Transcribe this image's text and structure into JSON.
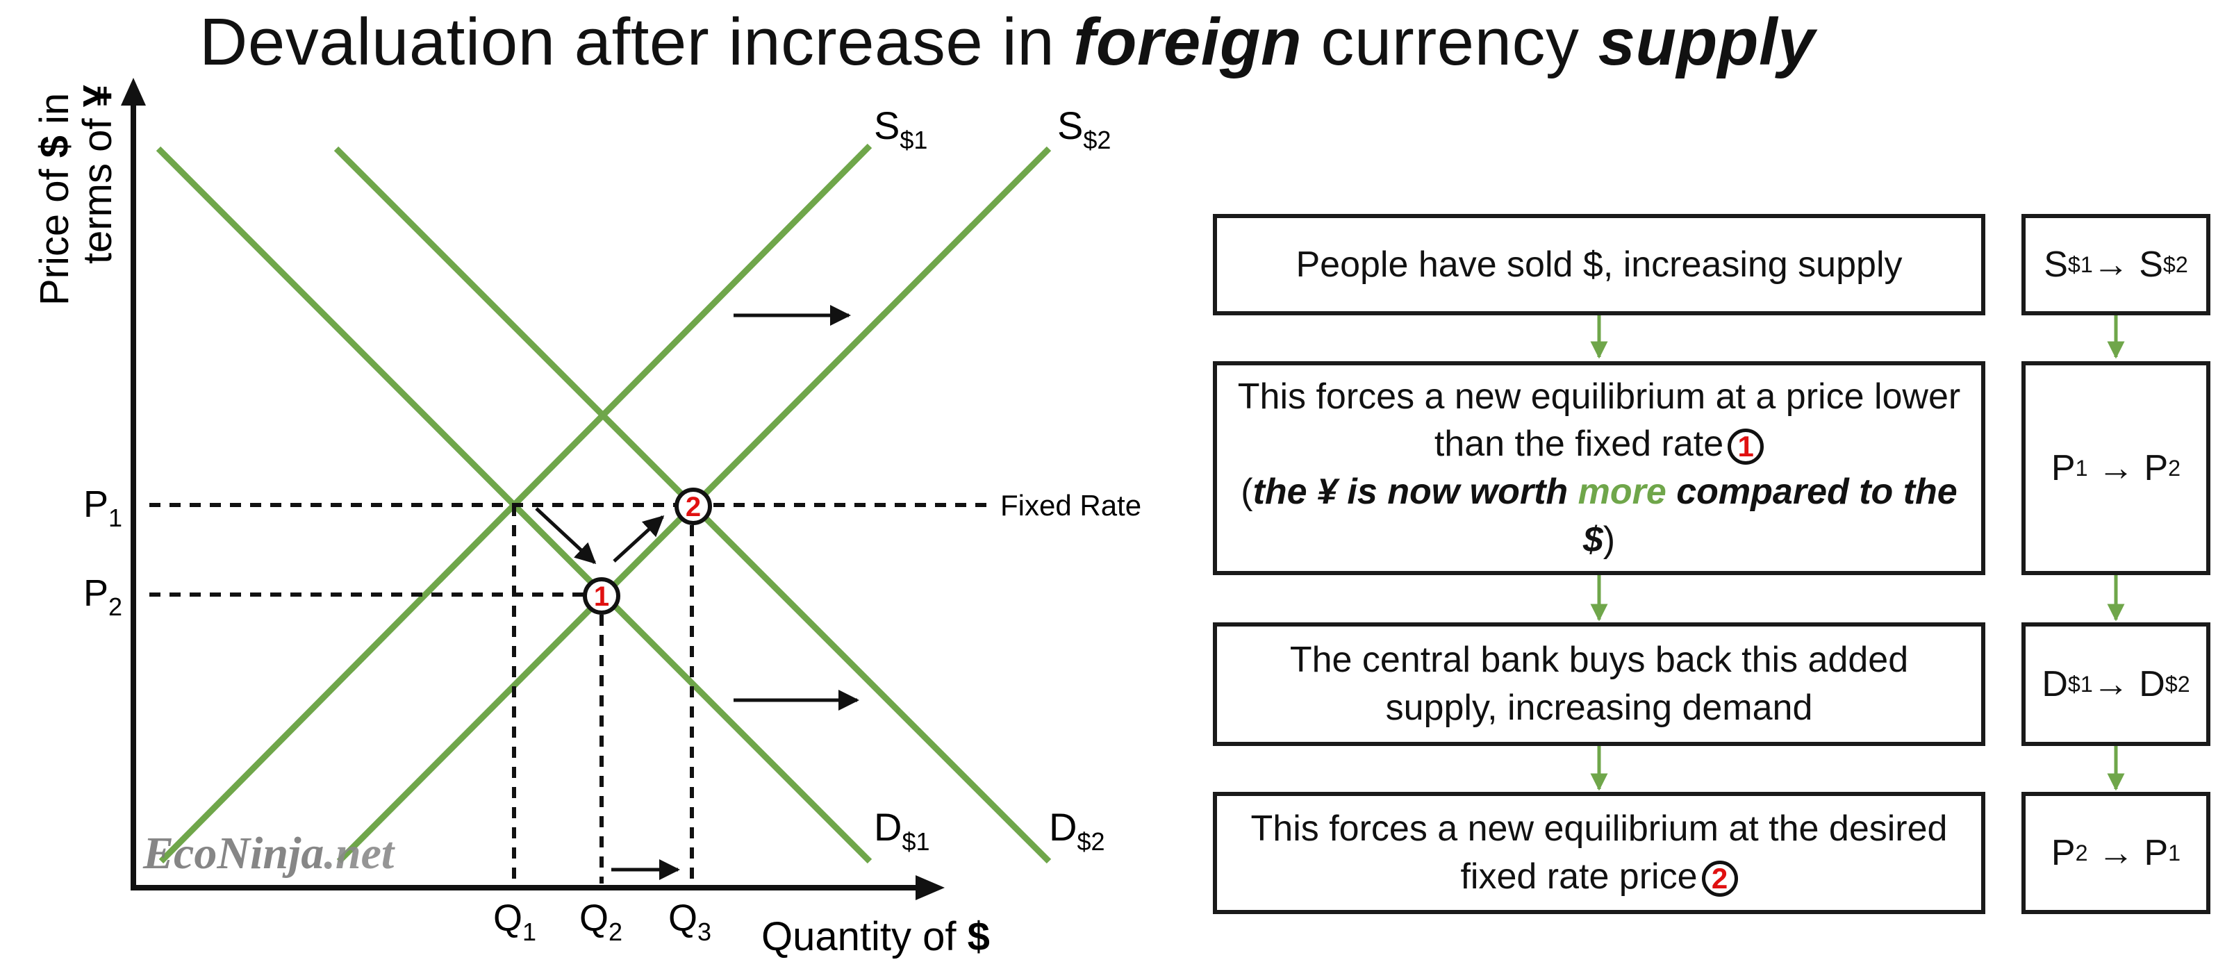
{
  "title": {
    "part1": "Devaluation after increase in ",
    "em1": "foreign",
    "part2": " currency ",
    "em2": "supply"
  },
  "colors": {
    "curve": "#6fa64a",
    "marker": "#e01010",
    "ink": "#111111"
  },
  "chart_data": {
    "type": "diagram",
    "y_axis_label_line1_pre": "Price of ",
    "y_axis_label_line1_bold": "$",
    "y_axis_label_line1_post": " in",
    "y_axis_label_line2_pre": "terms of ",
    "y_axis_label_line2_bold": "¥",
    "x_axis_label_pre": "Quantity of ",
    "x_axis_label_bold": "$",
    "curves": [
      {
        "label": "S",
        "sub": "$1"
      },
      {
        "label": "S",
        "sub": "$2"
      },
      {
        "label": "D",
        "sub": "$1"
      },
      {
        "label": "D",
        "sub": "$2"
      }
    ],
    "price_levels": [
      {
        "label": "P",
        "sub": "1"
      },
      {
        "label": "P",
        "sub": "2"
      }
    ],
    "quantities": [
      {
        "label": "Q",
        "sub": "1"
      },
      {
        "label": "Q",
        "sub": "2"
      },
      {
        "label": "Q",
        "sub": "3"
      }
    ],
    "fixed_rate_label": "Fixed Rate",
    "equilibrium_markers": [
      "1",
      "2"
    ],
    "watermark_part1": "EcoNinja",
    "watermark_part2": ".net"
  },
  "flow": {
    "step1": "People have sold $, increasing supply",
    "step2_line": "This forces a new equilibrium at a price lower than the fixed rate",
    "step2_marker": "1",
    "step2_paren_open": "(",
    "step2_bold1": "the ¥ is now worth ",
    "step2_green": "more",
    "step2_bold2": " compared to the $",
    "step2_paren_close": ")",
    "step3": "The central bank buys back this added supply, increasing demand",
    "step4": "This forces a new equilibrium at the desired fixed rate price",
    "step4_marker": "2"
  },
  "side": [
    {
      "a": "S",
      "a_sub": "$1",
      "arrow": "→",
      "b": "S",
      "b_sub": "$2"
    },
    {
      "a": "P",
      "a_sub": "1",
      "arrow": "→",
      "b": "P",
      "b_sub": "2"
    },
    {
      "a": "D",
      "a_sub": "$1",
      "arrow": "→",
      "b": "D",
      "b_sub": "$2"
    },
    {
      "a": "P",
      "a_sub": "2",
      "arrow": "→",
      "b": "P",
      "b_sub": "1"
    }
  ]
}
